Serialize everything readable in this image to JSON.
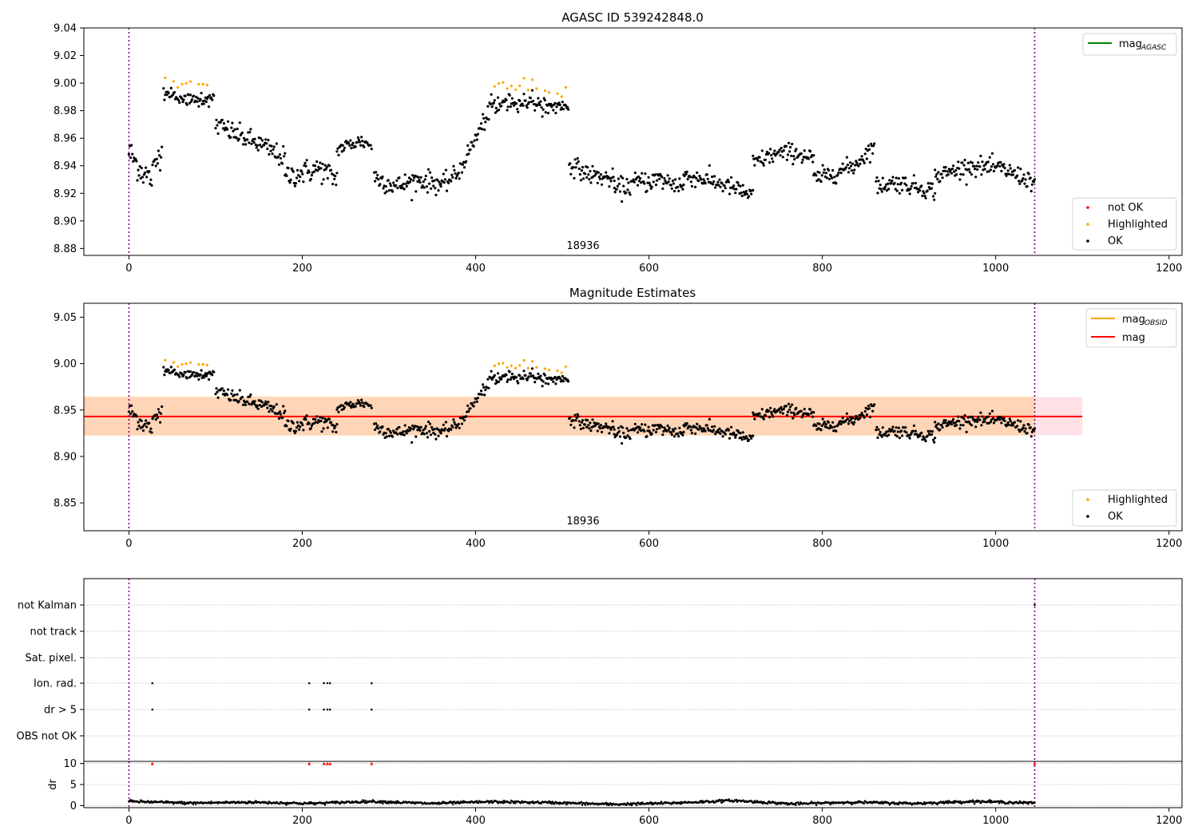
{
  "chart_data": [
    {
      "type": "scatter",
      "title": "AGASC ID 539242848.0",
      "xlim": [
        -52,
        1215
      ],
      "ylim": [
        8.875,
        9.04
      ],
      "xticks": [
        "0",
        "200",
        "400",
        "600",
        "800",
        "1000",
        "1200"
      ],
      "yticks": [
        "8.88",
        "8.90",
        "8.92",
        "8.94",
        "8.96",
        "8.98",
        "9.00",
        "9.02",
        "9.04"
      ],
      "annotation": "18936",
      "vlines": [
        0,
        1045
      ],
      "lines": [
        {
          "label_main": "mag",
          "label_sub": "AGASC",
          "color": "#008000",
          "value": null
        }
      ],
      "legend_points": [
        {
          "label": "not OK",
          "color": "#ff0000"
        },
        {
          "label": "Highlighted",
          "color": "#ffa500"
        },
        {
          "label": "OK",
          "color": "#000000"
        }
      ],
      "segments": [
        {
          "x": [
            0,
            38
          ],
          "level": [
            8.95,
            8.938,
            8.93,
            8.955
          ],
          "noise": 0.01
        },
        {
          "x": [
            40,
            98
          ],
          "level": [
            8.993,
            8.988,
            8.987,
            8.99
          ],
          "noise": 0.005,
          "highlight_offset": 0.013
        },
        {
          "x": [
            100,
            180
          ],
          "level": [
            8.97,
            8.962,
            8.955,
            8.945
          ],
          "noise": 0.007
        },
        {
          "x": [
            180,
            240
          ],
          "level": [
            8.932,
            8.935,
            8.938,
            8.93
          ],
          "noise": 0.008
        },
        {
          "x": [
            240,
            280
          ],
          "level": [
            8.952,
            8.955,
            8.958,
            8.955
          ],
          "noise": 0.005
        },
        {
          "x": [
            283,
            360
          ],
          "level": [
            8.932,
            8.925,
            8.93,
            8.927
          ],
          "noise": 0.007
        },
        {
          "x": [
            360,
            420
          ],
          "level": [
            8.925,
            8.935,
            8.96,
            8.985
          ],
          "noise": 0.006
        },
        {
          "x": [
            420,
            507
          ],
          "level": [
            8.985,
            8.987,
            8.985,
            8.982
          ],
          "noise": 0.005,
          "highlight_offset": 0.012
        },
        {
          "x": [
            508,
            560
          ],
          "level": [
            8.942,
            8.935,
            8.932,
            8.93
          ],
          "noise": 0.006
        },
        {
          "x": [
            560,
            640
          ],
          "level": [
            8.922,
            8.928,
            8.93,
            8.925
          ],
          "noise": 0.007
        },
        {
          "x": [
            640,
            720
          ],
          "level": [
            8.933,
            8.93,
            8.925,
            8.918
          ],
          "noise": 0.006
        },
        {
          "x": [
            720,
            790
          ],
          "level": [
            8.942,
            8.948,
            8.95,
            8.945
          ],
          "noise": 0.006
        },
        {
          "x": [
            790,
            860
          ],
          "level": [
            8.93,
            8.935,
            8.94,
            8.955
          ],
          "noise": 0.006
        },
        {
          "x": [
            862,
            930
          ],
          "level": [
            8.925,
            8.928,
            8.925,
            8.922
          ],
          "noise": 0.006
        },
        {
          "x": [
            930,
            1045
          ],
          "level": [
            8.932,
            8.94,
            8.938,
            8.928
          ],
          "noise": 0.006
        }
      ]
    },
    {
      "type": "scatter",
      "title": "Magnitude Estimates",
      "xlim": [
        -52,
        1215
      ],
      "ylim": [
        8.82,
        9.065
      ],
      "xticks": [
        "0",
        "200",
        "400",
        "600",
        "800",
        "1000",
        "1200"
      ],
      "yticks": [
        "8.85",
        "8.90",
        "8.95",
        "9.00",
        "9.05"
      ],
      "annotation": "18936",
      "vlines": [
        0,
        1045
      ],
      "mag_value": 8.943,
      "mag_band": [
        8.923,
        8.964
      ],
      "mag_band_x": [
        -52,
        1100
      ],
      "obsid_band_x": [
        -52,
        1045
      ],
      "lines": [
        {
          "label_main": "mag",
          "label_sub": "OBSID",
          "color": "#ffa500"
        },
        {
          "label_main": "mag",
          "label_sub": "",
          "color": "#ff0000"
        }
      ],
      "legend_points": [
        {
          "label": "Highlighted",
          "color": "#ffa500"
        },
        {
          "label": "OK",
          "color": "#000000"
        }
      ]
    },
    {
      "type": "scatter",
      "title": "",
      "xlim": [
        -52,
        1215
      ],
      "categories": [
        "not Kalman",
        "not track",
        "Sat. pixel.",
        "Ion. rad.",
        "dr > 5",
        "OBS not OK"
      ],
      "flag_points": {
        "Ion. rad.": [
          27,
          208,
          225,
          229,
          232,
          280
        ],
        "dr > 5": [
          27,
          208,
          225,
          229,
          232,
          280
        ],
        "not Kalman": [
          1045
        ]
      },
      "dr": {
        "ylabel": "dr",
        "ylim": [
          -0.5,
          10.5
        ],
        "yticks": [
          "0",
          "5",
          "10"
        ],
        "xticks": [
          "0",
          "200",
          "400",
          "600",
          "800",
          "1000",
          "1200"
        ],
        "clipped_points_x": [
          27,
          208,
          225,
          229,
          232,
          280,
          1045
        ],
        "clipped_value": 10,
        "typical_level": [
          1.0,
          0.6,
          0.8,
          0.5,
          1.0,
          0.5,
          0.9,
          0.7,
          0.3,
          0.6,
          1.2,
          0.4,
          0.8,
          0.5,
          1.0,
          0.6
        ]
      }
    }
  ]
}
